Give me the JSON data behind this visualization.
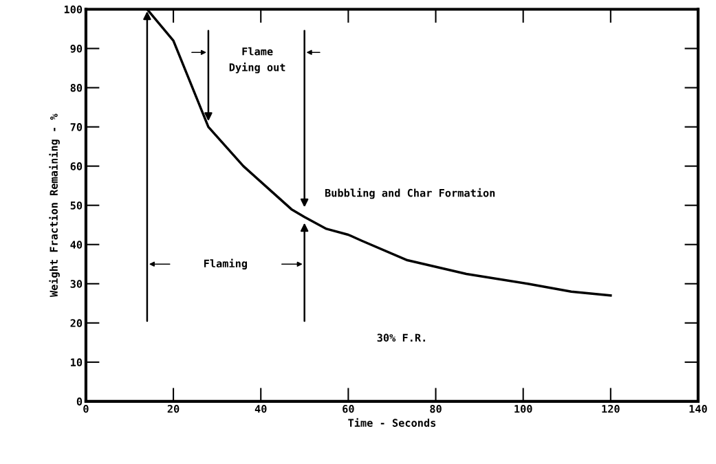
{
  "chart_data": {
    "type": "line",
    "xlabel": "Time - Seconds",
    "ylabel": "Weight Fraction Remaining - %",
    "xlim": [
      0,
      140
    ],
    "xticks": [
      0,
      20,
      40,
      60,
      80,
      100,
      120,
      140
    ],
    "ylim": [
      0,
      100
    ],
    "yticks": [
      0,
      10,
      20,
      30,
      40,
      50,
      60,
      70,
      80,
      90,
      100
    ],
    "grid": false,
    "series": [
      {
        "color": "#000000",
        "x": [
          14,
          20,
          24,
          28,
          32,
          36,
          42,
          47,
          50,
          55,
          60,
          63,
          73.5,
          87,
          101,
          111,
          120
        ],
        "values": [
          100,
          92,
          81,
          70,
          65,
          60,
          54,
          49,
          47,
          44,
          42.5,
          41,
          36,
          32.5,
          30,
          28,
          27
        ]
      }
    ],
    "annotations": [
      "Flame\nDying out",
      "Flaming",
      "Bubbling and Char Formation",
      "30% F.R."
    ]
  }
}
